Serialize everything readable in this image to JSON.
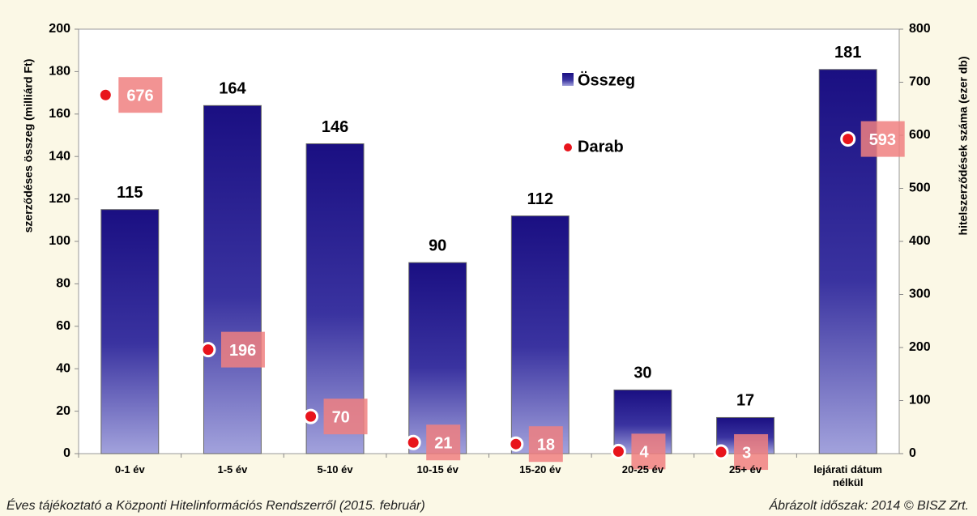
{
  "chart_data": {
    "type": "bar",
    "categories": [
      "0-1 év",
      "1-5 év",
      "5-10 év",
      "10-15 év",
      "15-20 év",
      "20-25 év",
      "25+ év",
      "lejárati dátum nélkül"
    ],
    "series": [
      {
        "name": "Összeg",
        "color": "#1a0f82",
        "values": [
          115,
          164,
          146,
          90,
          112,
          30,
          17,
          181
        ]
      },
      {
        "name": "Darab",
        "color": "#e8141c",
        "type": "scatter",
        "axis": "y2",
        "values": [
          676,
          196,
          70,
          21,
          18,
          4,
          3,
          593
        ]
      }
    ],
    "ylabel": "szerződéses összeg (milliárd Ft)",
    "y2label": "hitelszerződések száma (ezer db)",
    "ylim": [
      0,
      200
    ],
    "yticks": [
      0,
      20,
      40,
      60,
      80,
      100,
      120,
      140,
      160,
      180,
      200
    ],
    "y2lim": [
      0,
      800
    ],
    "y2ticks": [
      0,
      100,
      200,
      300,
      400,
      500,
      600,
      700,
      800
    ],
    "grid": false,
    "footer_left": "Éves tájékoztató a Központi Hitelinformációs Rendszerről (2015. február)",
    "footer_right": "Ábrázolt időszak: 2014 © BISZ Zrt."
  }
}
